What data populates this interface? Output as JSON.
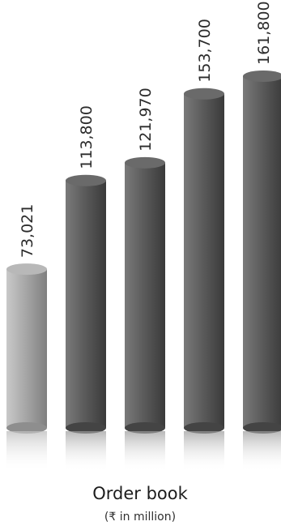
{
  "chart_data": {
    "type": "bar",
    "categories": [
      "",
      "",
      "",
      "",
      ""
    ],
    "values": [
      73021,
      113800,
      121970,
      153700,
      161800
    ],
    "data_labels": [
      "73,021",
      "113,800",
      "121,970",
      "153,700",
      "161,800"
    ],
    "title": "Order book",
    "subtitle": "(₹ in million)",
    "xlabel": "",
    "ylabel": "",
    "ylim": [
      0,
      161800
    ],
    "grid": false,
    "legend": "none",
    "colors": {
      "first_bar": "#a3a3a3",
      "other_bars": "#5b5b5b",
      "label": "#2b2b2b",
      "title": "#1c1c1c"
    }
  }
}
